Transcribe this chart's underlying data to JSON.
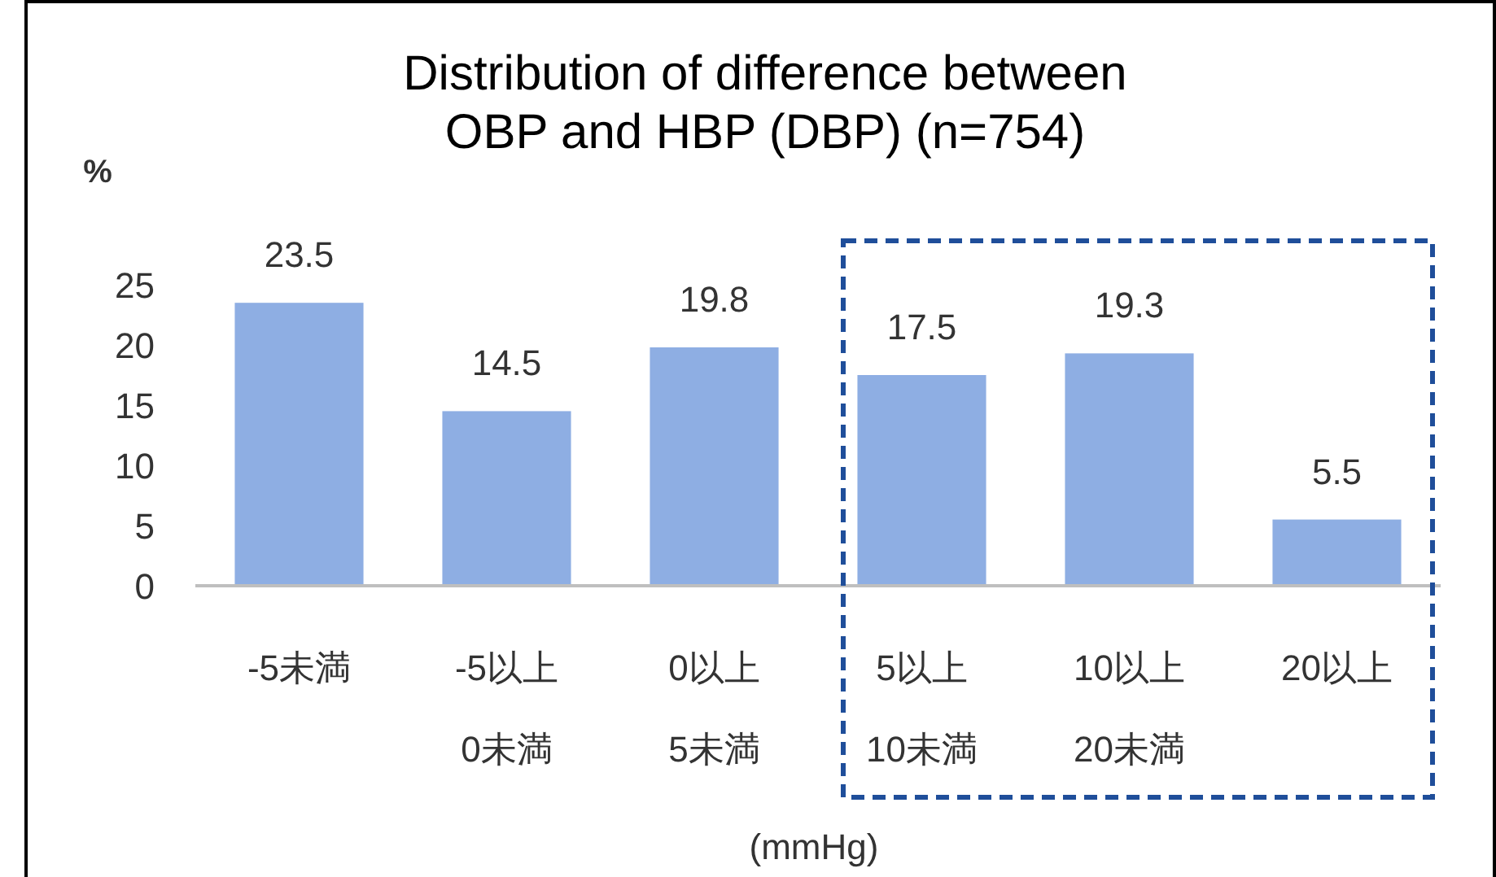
{
  "chart_data": {
    "type": "bar",
    "title": "Distribution of difference between\nOBP and HBP (DBP)   (n=754)",
    "ylabel": "%",
    "xlabel": "(mmHg)",
    "categories": [
      "-5未満",
      "-5以上\n0未満",
      "0以上\n5未満",
      "5以上\n10未満",
      "10以上\n20未満",
      "20以上"
    ],
    "values": [
      23.5,
      14.5,
      19.8,
      17.5,
      19.3,
      5.5
    ],
    "color": "#8eaee3",
    "ylim": [
      0,
      25
    ],
    "yticks": [
      0,
      5,
      10,
      15,
      20,
      25
    ],
    "data_labels": true,
    "grid": false
  }
}
